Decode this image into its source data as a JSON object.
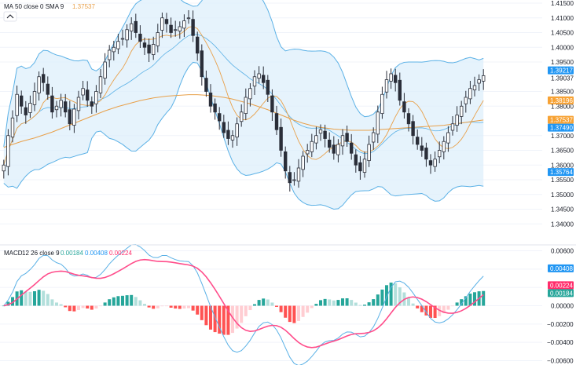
{
  "colors": {
    "up": "#26a69a",
    "down": "#ef5350",
    "candle": "#2a2e39",
    "band_line": "#5bb1e6",
    "band_fill": "#dceefb",
    "ma50": "#e8a04a",
    "sma9": "#e8a04a",
    "macd_line": "#2962ff",
    "signal_line": "#ff4d8b",
    "hist_up_strong": "#26a69a",
    "hist_up_weak": "#b2dfdb",
    "hist_down_strong": "#ff5252",
    "hist_down_weak": "#ffcdd2",
    "tag_blue": "#2196f3",
    "tag_orange": "#f7a234",
    "tag_pink": "#ff2d6b",
    "tag_teal": "#26a69a",
    "grid": "#f0f3fa"
  },
  "legend": {
    "ma": {
      "name": "MA",
      "params": "50 close 0 SMA 9",
      "value": "1.37537"
    },
    "macd": {
      "name": "MACD",
      "params": "12 26 close 9",
      "v1": "0.00184",
      "v2": "0.00408",
      "v3": "0.00224"
    }
  },
  "chart_data": [
    {
      "type": "candlestick",
      "indicators": [
        "MA 50 close 0 SMA 9",
        "Bollinger Bands"
      ],
      "ylim": [
        1.335,
        1.415
      ],
      "ticks": [
        "1.41500",
        "1.41000",
        "1.40500",
        "1.40000",
        "1.39500",
        "1.38500",
        "1.38000",
        "1.37000",
        "1.36500",
        "1.36000",
        "1.35500",
        "1.35000",
        "1.34500",
        "1.34000"
      ],
      "price_tags": [
        {
          "label": "1.39217",
          "value": 1.39217,
          "color": "tag_blue"
        },
        {
          "label": "1.39037",
          "value": 1.39037,
          "color": "none"
        },
        {
          "label": "1.38196",
          "value": 1.38196,
          "color": "tag_orange"
        },
        {
          "label": "1.37537",
          "value": 1.37537,
          "color": "tag_orange"
        },
        {
          "label": "1.37490",
          "value": 1.3749,
          "color": "tag_blue"
        },
        {
          "label": "1.35764",
          "value": 1.35764,
          "color": "tag_blue"
        }
      ],
      "close": [
        1.36,
        1.37,
        1.376,
        1.384,
        1.38,
        1.377,
        1.381,
        1.385,
        1.39,
        1.388,
        1.384,
        1.378,
        1.38,
        1.382,
        1.378,
        1.374,
        1.379,
        1.383,
        1.386,
        1.382,
        1.38,
        1.385,
        1.39,
        1.395,
        1.399,
        1.4,
        1.402,
        1.403,
        1.406,
        1.408,
        1.405,
        1.402,
        1.4,
        1.398,
        1.401,
        1.405,
        1.41,
        1.408,
        1.405,
        1.406,
        1.407,
        1.409,
        1.41,
        1.404,
        1.398,
        1.39,
        1.385,
        1.38,
        1.378,
        1.375,
        1.371,
        1.369,
        1.37,
        1.374,
        1.378,
        1.383,
        1.386,
        1.39,
        1.391,
        1.388,
        1.384,
        1.378,
        1.372,
        1.365,
        1.358,
        1.354,
        1.355,
        1.359,
        1.363,
        1.365,
        1.368,
        1.37,
        1.372,
        1.369,
        1.366,
        1.364,
        1.367,
        1.37,
        1.368,
        1.364,
        1.36,
        1.358,
        1.362,
        1.367,
        1.371,
        1.378,
        1.384,
        1.389,
        1.391,
        1.388,
        1.382,
        1.378,
        1.374,
        1.37,
        1.367,
        1.365,
        1.362,
        1.36,
        1.362,
        1.365,
        1.368,
        1.371,
        1.374,
        1.377,
        1.38,
        1.383,
        1.386,
        1.387,
        1.389,
        1.39037
      ],
      "ma50": [
        1.366,
        1.3665,
        1.367,
        1.3675,
        1.368,
        1.3684,
        1.3688,
        1.3692,
        1.3697,
        1.3702,
        1.3707,
        1.3712,
        1.3718,
        1.3724,
        1.373,
        1.3736,
        1.3742,
        1.3748,
        1.3754,
        1.376,
        1.3766,
        1.3772,
        1.3778,
        1.3784,
        1.3789,
        1.3794,
        1.3799,
        1.3803,
        1.3807,
        1.3811,
        1.3815,
        1.3819,
        1.3822,
        1.3825,
        1.3828,
        1.383,
        1.3832,
        1.3834,
        1.3835,
        1.3836,
        1.3837,
        1.3838,
        1.3839,
        1.3839,
        1.3839,
        1.3838,
        1.3837,
        1.3836,
        1.3834,
        1.3832,
        1.383,
        1.3827,
        1.3824,
        1.382,
        1.3816,
        1.3812,
        1.3808,
        1.3803,
        1.3798,
        1.3793,
        1.3788,
        1.3782,
        1.3776,
        1.377,
        1.3764,
        1.3758,
        1.3752,
        1.3747,
        1.3742,
        1.3738,
        1.3734,
        1.3731,
        1.3728,
        1.3726,
        1.3724,
        1.3722,
        1.3721,
        1.372,
        1.3719,
        1.3718,
        1.3718,
        1.3718,
        1.3718,
        1.3718,
        1.3719,
        1.372,
        1.3721,
        1.3722,
        1.3723,
        1.3724,
        1.3725,
        1.3726,
        1.3727,
        1.3728,
        1.3729,
        1.373,
        1.3731,
        1.3732,
        1.3733,
        1.3734,
        1.3735,
        1.3737,
        1.3739,
        1.3741,
        1.3743,
        1.3745,
        1.3747,
        1.3749,
        1.3751,
        1.3753
      ]
    },
    {
      "type": "bar",
      "name": "MACD 12 26 close 9",
      "ylim": [
        -0.0063,
        0.0063
      ],
      "ticks": [
        "0.00600",
        "0.00400",
        "0.00200",
        "0.00000",
        "−0.00200",
        "−0.00400",
        "−0.00600"
      ],
      "value_tags": [
        {
          "label": "0.00408",
          "value": 0.00408,
          "color": "tag_blue"
        },
        {
          "label": "0.00224",
          "value": 0.00224,
          "color": "tag_pink"
        },
        {
          "label": "0.00184",
          "value": 0.00184,
          "color": "tag_teal"
        }
      ]
    }
  ]
}
